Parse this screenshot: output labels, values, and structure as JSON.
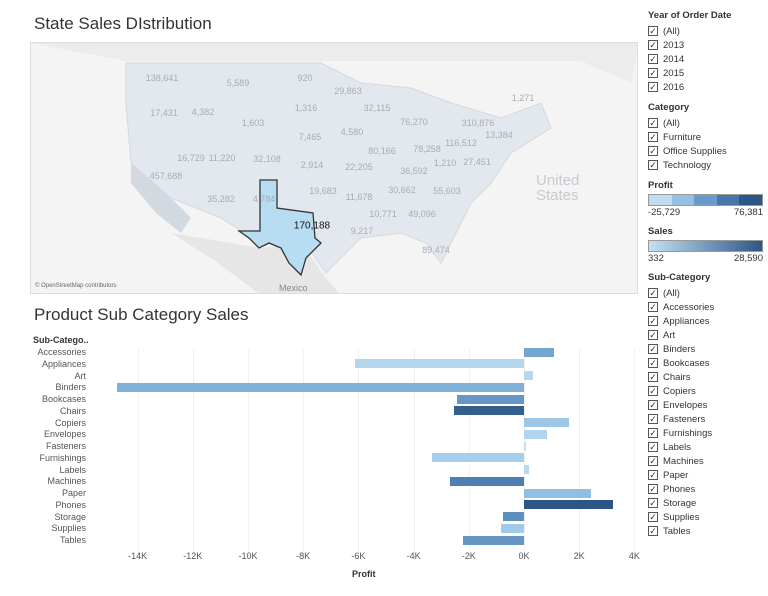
{
  "map": {
    "title": "State Sales DIstribution",
    "country_watermark": [
      "United",
      "States"
    ],
    "mexico": "Mexico",
    "credit": "© OpenStreetMap contributors",
    "selected": "170,188",
    "labels": [
      "138,641",
      "5,589",
      "920",
      "17,431",
      "4,382",
      "1,603",
      "1,316",
      "7,465",
      "16,729",
      "11,220",
      "32,108",
      "2,914",
      "457,688",
      "35,282",
      "4,784",
      "29,863",
      "32,115",
      "76,270",
      "310,876",
      "1,271",
      "13,384",
      "4,580",
      "80,166",
      "78,258",
      "116,512",
      "22,205",
      "36,592",
      "1,210",
      "27,451",
      "19,683",
      "30,662",
      "55,603",
      "11,678",
      "10,771",
      "49,096",
      "9,217",
      "89,474"
    ]
  },
  "filters": {
    "year": {
      "title": "Year of Order Date",
      "items": [
        "(All)",
        "2013",
        "2014",
        "2015",
        "2016"
      ]
    },
    "category": {
      "title": "Category",
      "items": [
        "(All)",
        "Furniture",
        "Office Supplies",
        "Technology"
      ]
    },
    "profit_legend": {
      "title": "Profit",
      "min": "-25,729",
      "max": "76,381",
      "colors": [
        "#c0ddf0",
        "#94c0e2",
        "#6a9ccb",
        "#4676aa",
        "#2c5685"
      ]
    },
    "sales_legend": {
      "title": "Sales",
      "min": "332",
      "max": "28,590",
      "colors": [
        "#c3e0f3",
        "#2c5685"
      ]
    },
    "subcategory": {
      "title": "Sub-Category",
      "items": [
        "(All)",
        "Accessories",
        "Appliances",
        "Art",
        "Binders",
        "Bookcases",
        "Chairs",
        "Copiers",
        "Envelopes",
        "Fasteners",
        "Furnishings",
        "Labels",
        "Machines",
        "Paper",
        "Phones",
        "Storage",
        "Supplies",
        "Tables"
      ]
    }
  },
  "chart_data": {
    "type": "bar",
    "orientation": "horizontal",
    "title": "Product Sub Category Sales",
    "ylabel": "Sub-Catego..",
    "xlabel": "Profit",
    "categories": [
      "Accessories",
      "Appliances",
      "Art",
      "Binders",
      "Bookcases",
      "Chairs",
      "Copiers",
      "Envelopes",
      "Fasteners",
      "Furnishings",
      "Labels",
      "Machines",
      "Paper",
      "Phones",
      "Storage",
      "Supplies",
      "Tables"
    ],
    "values": [
      1100,
      -6140,
      310,
      -14730,
      -2410,
      -2540,
      1630,
      850,
      70,
      -3320,
      180,
      -2670,
      2420,
      3210,
      -770,
      -850,
      -2220
    ],
    "colors": [
      "#74a7cf",
      "#b3d6ec",
      "#b7d9ee",
      "#80b1d7",
      "#6697c5",
      "#345f8c",
      "#9dc7e6",
      "#b0d5ed",
      "#c3e0f1",
      "#a6cde9",
      "#b7daef",
      "#4f7fb2",
      "#8fbfe1",
      "#2c5685",
      "#5f8fc0",
      "#a0cbe8",
      "#6696c4"
    ],
    "xticks": [
      "-14K",
      "-12K",
      "-10K",
      "-8K",
      "-6K",
      "-4K",
      "-2K",
      "0K",
      "2K",
      "4K"
    ],
    "xlim": [
      -14800,
      4000
    ],
    "grid": true
  }
}
